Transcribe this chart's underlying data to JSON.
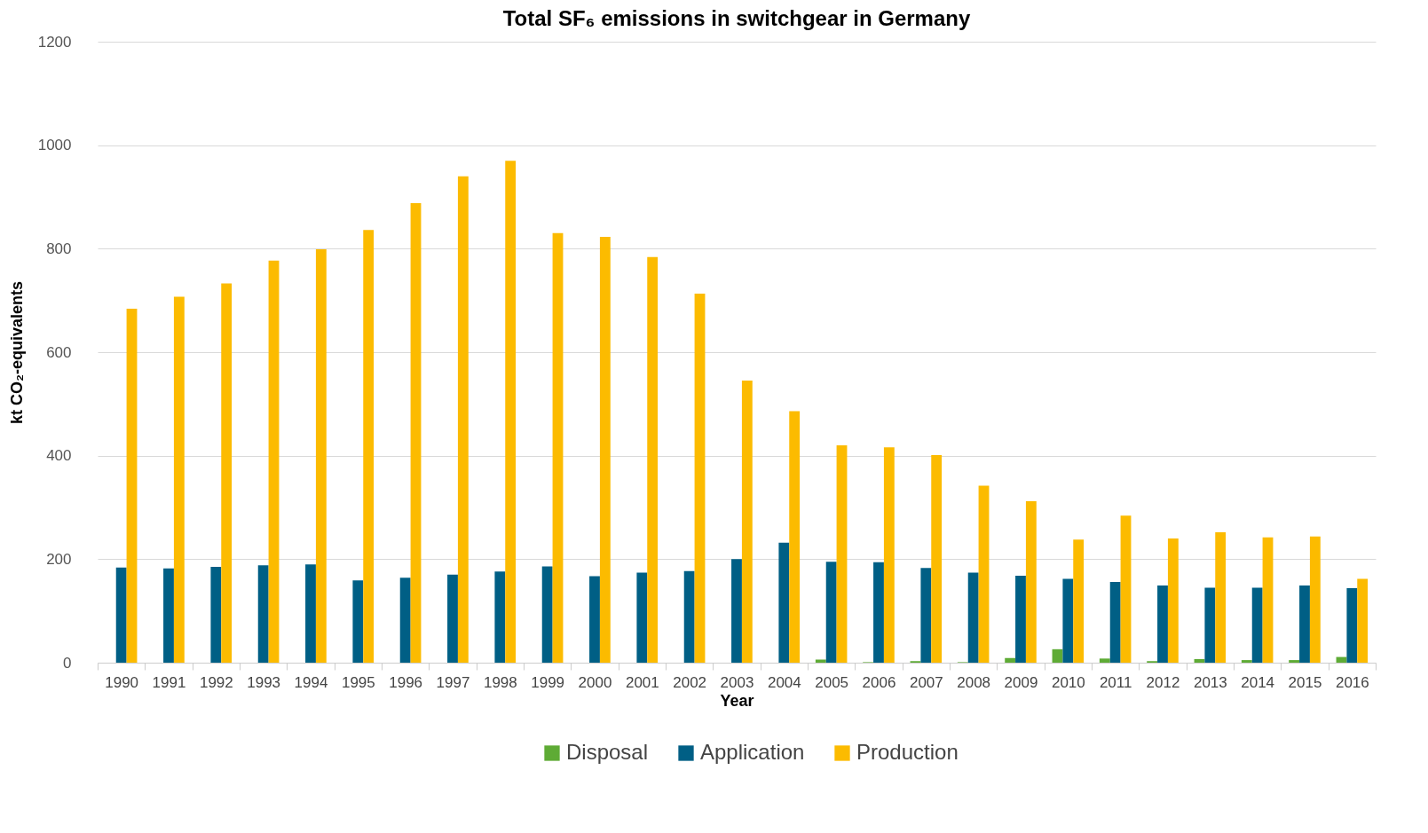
{
  "chart_data": {
    "type": "bar",
    "title": "Total SF₆ emissions in switchgear in Germany",
    "xlabel": "Year",
    "ylabel": "kt CO₂-equivalents",
    "categories": [
      "1990",
      "1991",
      "1992",
      "1993",
      "1994",
      "1995",
      "1996",
      "1997",
      "1998",
      "1999",
      "2000",
      "2001",
      "2002",
      "2003",
      "2004",
      "2005",
      "2006",
      "2007",
      "2008",
      "2009",
      "2010",
      "2011",
      "2012",
      "2013",
      "2014",
      "2015",
      "2016"
    ],
    "series": [
      {
        "name": "Disposal",
        "color": "#5eab35",
        "values": [
          0,
          0,
          0,
          0,
          0,
          0,
          0,
          0,
          0,
          0,
          0,
          0,
          0,
          0,
          0,
          6,
          1,
          3,
          1,
          9,
          26,
          8,
          3,
          7,
          5,
          5,
          11
        ]
      },
      {
        "name": "Application",
        "color": "#005f85",
        "values": [
          184,
          182,
          185,
          188,
          190,
          159,
          164,
          170,
          176,
          186,
          167,
          174,
          177,
          200,
          232,
          195,
          194,
          183,
          174,
          168,
          162,
          156,
          149,
          145,
          145,
          149,
          144
        ]
      },
      {
        "name": "Production",
        "color": "#fcbb00",
        "values": [
          684,
          707,
          733,
          777,
          799,
          836,
          888,
          940,
          970,
          830,
          823,
          784,
          713,
          545,
          486,
          420,
          416,
          401,
          342,
          312,
          238,
          284,
          240,
          252,
          242,
          244,
          162
        ]
      }
    ],
    "ylim": [
      0,
      1200
    ],
    "yticks": [
      0,
      200,
      400,
      600,
      800,
      1000,
      1200
    ],
    "grid": "y",
    "legend": "bottom"
  }
}
